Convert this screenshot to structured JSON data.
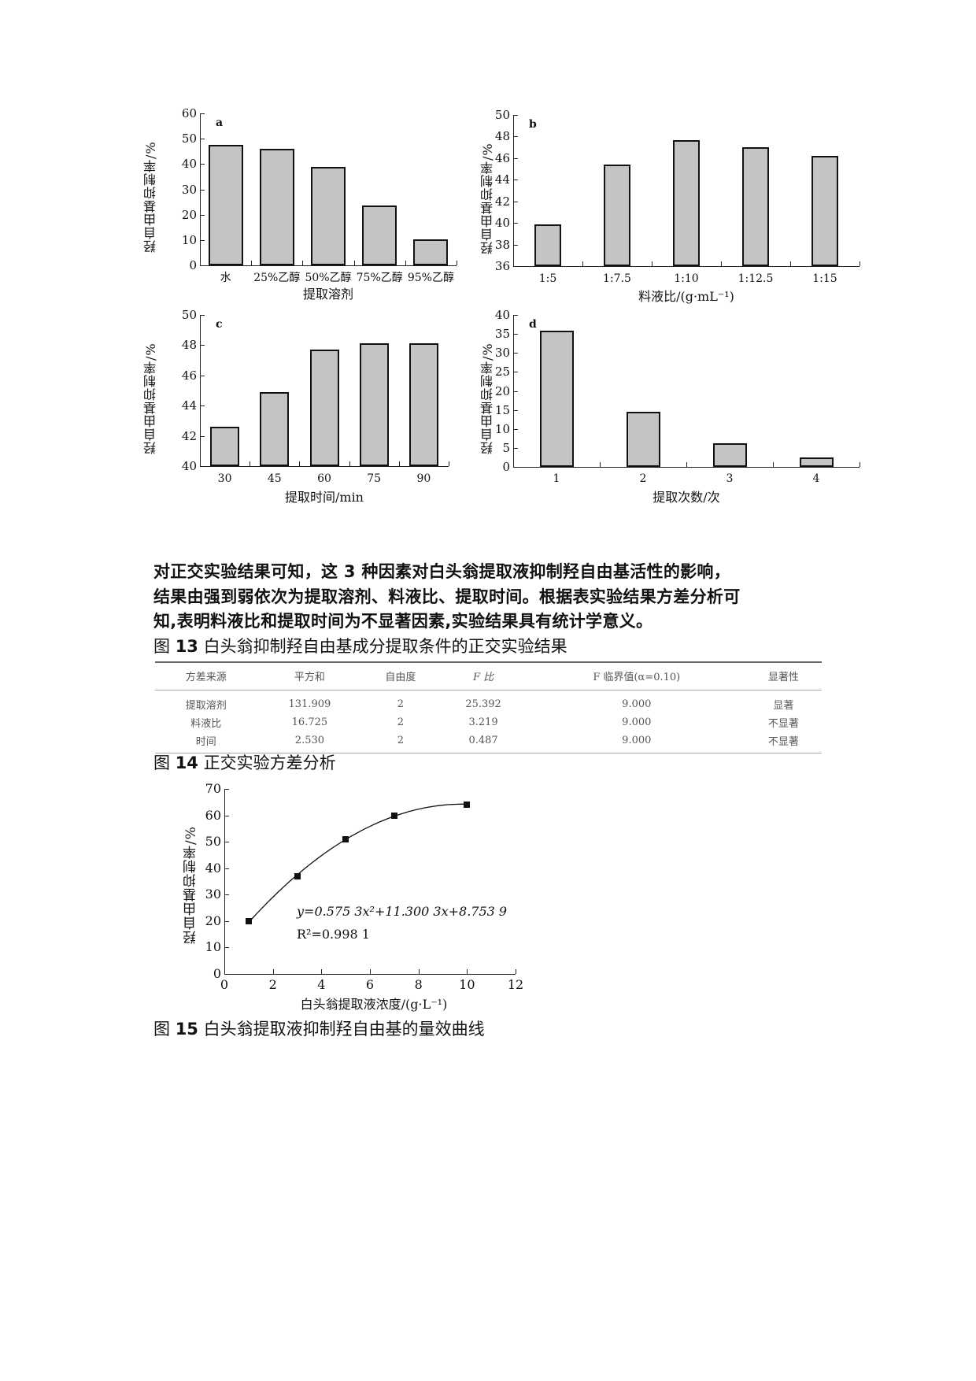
{
  "text": {
    "paragraph_line1": "对正交实验结果可知，这  3 种因素对白头翁提取液抑制羟自由基活性的影响，",
    "paragraph_line2": "结果由强到弱依次为提取溶剂、料液比、提取时间。根据表实验结果方差分析可",
    "paragraph_line3": "知,表明料液比和提取时间为不显著因素,实验结果具有统计学意义。"
  },
  "captions": {
    "fig13_prefix": "图",
    "fig13_num": "13",
    "fig13_text": "白头翁抑制羟自由基成分提取条件的正交实验结果",
    "fig14_prefix": "图",
    "fig14_num": "14",
    "fig14_text": "正交实验方差分析",
    "fig15_prefix": "图",
    "fig15_num": "15",
    "fig15_text": "白头翁提取液抑制羟自由基的量效曲线"
  },
  "table": {
    "headers": [
      "方差来源",
      "平方和",
      "自由度",
      "F 比",
      "F 临界值(α=0.10)",
      "显著性"
    ],
    "rows": [
      [
        "提取溶剂",
        "131.909",
        "2",
        "25.392",
        "9.000",
        "显著"
      ],
      [
        "料液比",
        "16.725",
        "2",
        "3.219",
        "9.000",
        "不显著"
      ],
      [
        "时间",
        "2.530",
        "2",
        "0.487",
        "9.000",
        "不显著"
      ]
    ]
  },
  "chart_data": [
    {
      "id": "a",
      "type": "bar",
      "panel_label": "a",
      "categories": [
        "水",
        "25%乙醇",
        "50%乙醇",
        "75%乙醇",
        "95%乙醇"
      ],
      "values": [
        47.5,
        46,
        39,
        23.5,
        10.2
      ],
      "xlabel": "提取溶剂",
      "ylabel": "羟自由基抑制率/%",
      "ylim": [
        0,
        60
      ],
      "yticks": [
        "0",
        "10",
        "20",
        "30",
        "40",
        "50",
        "60"
      ],
      "grid": false
    },
    {
      "id": "b",
      "type": "bar",
      "panel_label": "b",
      "categories": [
        "1:5",
        "1:7.5",
        "1:10",
        "1:12.5",
        "1:15"
      ],
      "values": [
        39.9,
        45.4,
        47.7,
        47.0,
        46.2
      ],
      "xlabel": "料液比/(g·mL⁻¹)",
      "ylabel": "羟自由基抑制率/%",
      "ylim": [
        36,
        50
      ],
      "yticks": [
        "36",
        "38",
        "40",
        "42",
        "44",
        "46",
        "48",
        "50"
      ],
      "grid": false
    },
    {
      "id": "c",
      "type": "bar",
      "panel_label": "c",
      "categories": [
        "30",
        "45",
        "60",
        "75",
        "90"
      ],
      "values": [
        42.6,
        44.9,
        47.7,
        48.1,
        48.1
      ],
      "xlabel": "提取时间/min",
      "ylabel": "羟自由基抑制率/%",
      "ylim": [
        40,
        50
      ],
      "yticks": [
        "40",
        "42",
        "44",
        "46",
        "48",
        "50"
      ],
      "grid": false
    },
    {
      "id": "d",
      "type": "bar",
      "panel_label": "d",
      "categories": [
        "1",
        "2",
        "3",
        "4"
      ],
      "values": [
        35.8,
        14.6,
        6.3,
        2.4
      ],
      "xlabel": "提取次数/次",
      "ylabel": "羟自由基抑制率/%",
      "ylim": [
        0,
        40
      ],
      "yticks": [
        "0",
        "5",
        "10",
        "15",
        "20",
        "25",
        "30",
        "35",
        "40"
      ],
      "grid": false
    },
    {
      "id": "dose",
      "type": "scatter",
      "title": "",
      "x": [
        1,
        3,
        5,
        7,
        10
      ],
      "y": [
        20,
        37,
        51,
        60,
        64
      ],
      "fit": "quadratic",
      "equation": "y=0.575 3x²+11.300 3x+8.753 9",
      "r2": "R²=0.998 1",
      "xlabel": "白头翁提取液浓度/(g·L⁻¹)",
      "ylabel": "羟自由基抑制率/%",
      "xlim": [
        0,
        12
      ],
      "ylim": [
        0,
        70
      ],
      "xticks": [
        "0",
        "2",
        "4",
        "6",
        "8",
        "10",
        "12"
      ],
      "yticks": [
        "0",
        "10",
        "20",
        "30",
        "40",
        "50",
        "60",
        "70"
      ],
      "grid": false
    }
  ]
}
